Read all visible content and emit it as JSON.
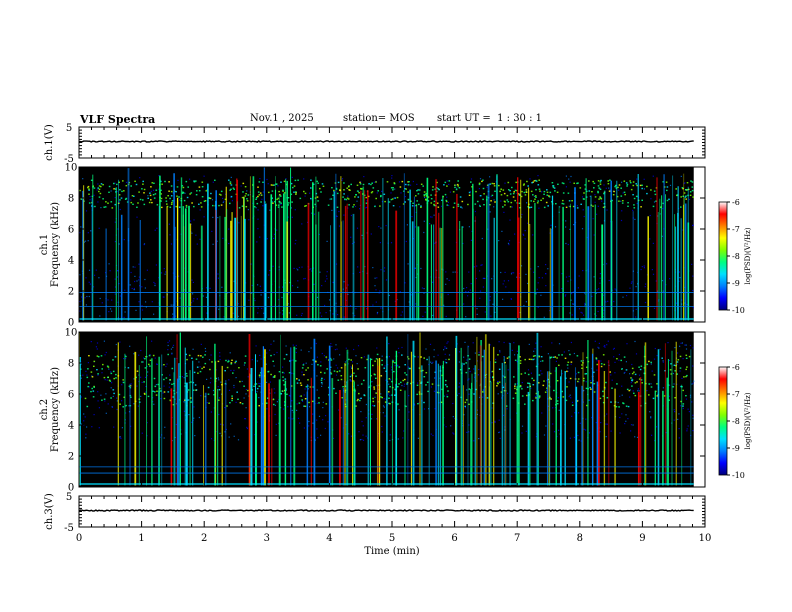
{
  "header": {
    "title": "VLF Spectra",
    "date": "Nov.1 , 2025",
    "station": "station= MOS",
    "start": "start UT =  1 : 30 : 1"
  },
  "chart_data": [
    {
      "type": "line",
      "panel": "ch1-waveform",
      "ylabel": "ch.1(V)",
      "ylim": [
        -5,
        5
      ],
      "yticks": [
        "5",
        "-5"
      ],
      "series": [
        {
          "x": [
            0,
            9.82
          ],
          "y": [
            0,
            0
          ]
        }
      ]
    },
    {
      "type": "heatmap",
      "panel": "ch1-spectrogram",
      "ylabel": "ch.1\nFrequency (kHz)",
      "ylim": [
        0,
        10
      ],
      "yticks": [
        "0",
        "2",
        "4",
        "6",
        "8",
        "10"
      ],
      "xlim": [
        0,
        10
      ],
      "data_end": 9.82,
      "bands_khz": [
        1.0,
        1.9
      ],
      "colorbar": {
        "label": "log(PSD)(V²/Hz)",
        "min": -10,
        "max": -6,
        "ticks": [
          "-6",
          "-7",
          "-8",
          "-9",
          "-10"
        ]
      }
    },
    {
      "type": "heatmap",
      "panel": "ch2-spectrogram",
      "ylabel": "ch.2\nFrequency (kHz)",
      "ylim": [
        0,
        10
      ],
      "yticks": [
        "0",
        "2",
        "4",
        "6",
        "8",
        "10"
      ],
      "xlim": [
        0,
        10
      ],
      "data_end": 9.82,
      "bands_khz": [
        0.9,
        1.3
      ],
      "colorbar": {
        "label": "log(PSD)(V²/Hz)",
        "min": -10,
        "max": -6,
        "ticks": [
          "-6",
          "-7",
          "-8",
          "-9",
          "-10"
        ]
      }
    },
    {
      "type": "line",
      "panel": "ch3-waveform",
      "ylabel": "ch.3(V)",
      "ylim": [
        -5,
        5
      ],
      "yticks": [
        "5",
        "-5"
      ],
      "xlabel": "Time (min)",
      "xticks": [
        "0",
        "1",
        "2",
        "3",
        "4",
        "5",
        "6",
        "7",
        "8",
        "9",
        "10"
      ],
      "series": [
        {
          "x": [
            0,
            9.82
          ],
          "y": [
            0,
            0
          ]
        }
      ]
    }
  ],
  "colors": {
    "background": "#000000",
    "axis": "#000000",
    "colormap": [
      "#00007a",
      "#0000ff",
      "#0080ff",
      "#00e0ff",
      "#00ff80",
      "#80ff00",
      "#ffff00",
      "#ff8000",
      "#ff0000",
      "#ffffff"
    ]
  }
}
